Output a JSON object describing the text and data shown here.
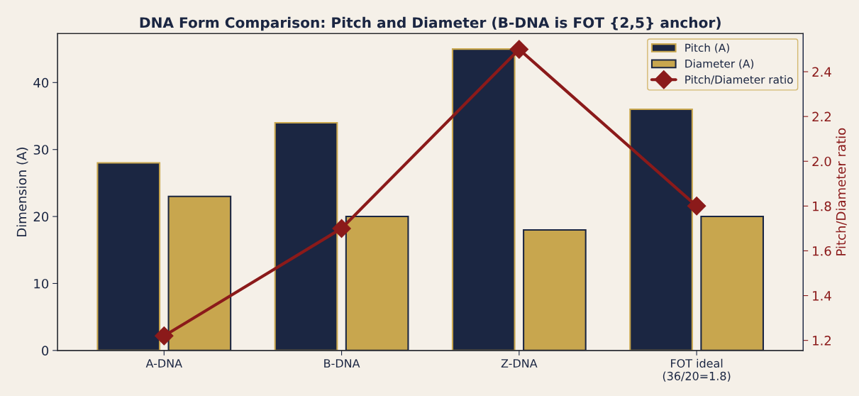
{
  "chart_data": {
    "type": "bar",
    "title": "DNA Form Comparison: Pitch and Diameter (B-DNA is FOT {2,5} anchor)",
    "categories": [
      "A-DNA",
      "B-DNA",
      "Z-DNA",
      "FOT ideal\n(36/20=1.8)"
    ],
    "ylabel": "Dimension (A)",
    "y2label": "Pitch/Diameter ratio",
    "series": [
      {
        "name": "Pitch (A)",
        "color": "#1b2642",
        "values": [
          28,
          34,
          45,
          36
        ]
      },
      {
        "name": "Diameter (A)",
        "color": "#c8a64e",
        "values": [
          23,
          20,
          18,
          20
        ]
      },
      {
        "name": "Pitch/Diameter ratio",
        "type": "line",
        "axis": "y2",
        "color": "#8b1a1a",
        "values": [
          1.22,
          1.7,
          2.5,
          1.8
        ]
      }
    ],
    "ylim": [
      0,
      47.3
    ],
    "yticks": [
      0,
      10,
      20,
      30,
      40
    ],
    "y2lim": [
      1.155,
      2.57
    ],
    "y2ticks": [
      1.2,
      1.4,
      1.6,
      1.8,
      {
        "value": 2.0,
        "label": "2.0"
      },
      2.2,
      2.4
    ],
    "marker": "diamond",
    "line_style": "solid",
    "legend": "top right",
    "grid": false
  }
}
